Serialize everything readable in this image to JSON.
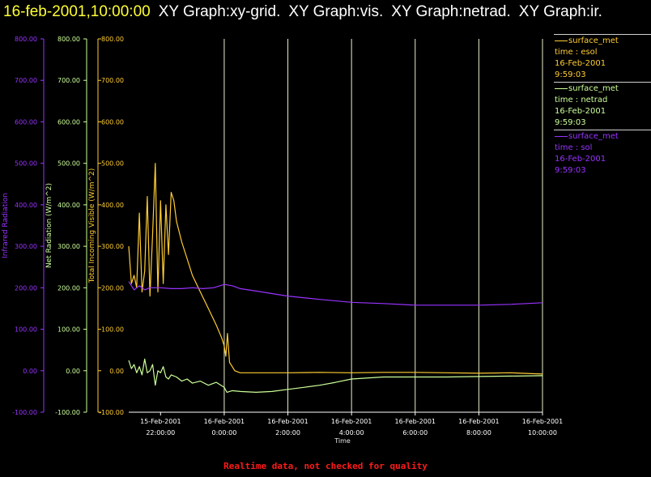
{
  "header": {
    "timestamp": "16-feb-2001,10:00:00",
    "graphs": [
      "XY Graph:xy-grid.",
      "XY Graph:vis.",
      "XY Graph:netrad.",
      "XY Graph:ir."
    ]
  },
  "footer": {
    "text": "Realtime data, not checked for quality"
  },
  "legend": [
    {
      "line1": "surface_met",
      "line2": "time : esol",
      "line3": "16-Feb-2001",
      "line4": "9:59:03",
      "color": "#ffcc33"
    },
    {
      "line1": "surface_met",
      "line2": "time : netrad",
      "line3": "16-Feb-2001",
      "line4": "9:59:03",
      "color": "#ccff99"
    },
    {
      "line1": "surface_met",
      "line2": "time : sol",
      "line3": "16-Feb-2001",
      "line4": "9:59:03",
      "color": "#9933ff"
    }
  ],
  "chart_data": {
    "type": "line",
    "xlabel": "Time",
    "x_ticks": [
      {
        "date": "15-Feb-2001",
        "time": "22:00:00"
      },
      {
        "date": "16-Feb-2001",
        "time": "0:00:00"
      },
      {
        "date": "16-Feb-2001",
        "time": "2:00:00"
      },
      {
        "date": "16-Feb-2001",
        "time": "4:00:00"
      },
      {
        "date": "16-Feb-2001",
        "time": "6:00:00"
      },
      {
        "date": "16-Feb-2001",
        "time": "8:00:00"
      },
      {
        "date": "16-Feb-2001",
        "time": "10:00:00"
      }
    ],
    "xlim": [
      "15-Feb-2001 21:00:00",
      "16-Feb-2001 10:00:00"
    ],
    "grid": "vertical lines at each time tick",
    "axes": [
      {
        "id": "ir",
        "label": "Infrared Radiation",
        "color": "#9933ff",
        "ylim": [
          -100,
          800
        ],
        "ticks": [
          "-100.00",
          "0.00",
          "100.00",
          "200.00",
          "300.00",
          "400.00",
          "500.00",
          "600.00",
          "700.00",
          "800.00"
        ]
      },
      {
        "id": "net",
        "label": "Net Radiation (W/m^2)",
        "color": "#ccff99",
        "ylim": [
          -100,
          800
        ],
        "ticks": [
          "-100.00",
          "0.00",
          "100.00",
          "200.00",
          "300.00",
          "400.00",
          "500.00",
          "600.00",
          "700.00",
          "800.00"
        ]
      },
      {
        "id": "vis",
        "label": "Total Incoming Visible (W/m^2)",
        "color": "#ffcc33",
        "ylim": [
          -100,
          800
        ],
        "ticks": [
          "-100.00",
          "0.00",
          "100.00",
          "200.00",
          "300.00",
          "400.00",
          "500.00",
          "600.00",
          "700.00",
          "800.00"
        ]
      }
    ],
    "series": [
      {
        "name": "time : esol",
        "color": "#ffcc33",
        "x": [
          "15-Feb-2001 21:00:00",
          "15-Feb-2001 21:05:00",
          "15-Feb-2001 21:10:00",
          "15-Feb-2001 21:15:00",
          "15-Feb-2001 21:20:00",
          "15-Feb-2001 21:25:00",
          "15-Feb-2001 21:30:00",
          "15-Feb-2001 21:35:00",
          "15-Feb-2001 21:40:00",
          "15-Feb-2001 21:45:00",
          "15-Feb-2001 21:50:00",
          "15-Feb-2001 21:55:00",
          "15-Feb-2001 22:00:00",
          "15-Feb-2001 22:05:00",
          "15-Feb-2001 22:10:00",
          "15-Feb-2001 22:15:00",
          "15-Feb-2001 22:20:00",
          "15-Feb-2001 22:25:00",
          "15-Feb-2001 22:30:00",
          "15-Feb-2001 22:40:00",
          "15-Feb-2001 22:50:00",
          "15-Feb-2001 23:00:00",
          "15-Feb-2001 23:15:00",
          "15-Feb-2001 23:30:00",
          "15-Feb-2001 23:45:00",
          "15-Feb-2001 23:55:00",
          "16-Feb-2001 00:00:00",
          "16-Feb-2001 00:03:00",
          "16-Feb-2001 00:06:00",
          "16-Feb-2001 00:10:00",
          "16-Feb-2001 00:15:00",
          "16-Feb-2001 00:20:00",
          "16-Feb-2001 00:30:00",
          "16-Feb-2001 00:45:00",
          "16-Feb-2001 01:00:00",
          "16-Feb-2001 02:00:00",
          "16-Feb-2001 03:00:00",
          "16-Feb-2001 04:00:00",
          "16-Feb-2001 05:00:00",
          "16-Feb-2001 06:00:00",
          "16-Feb-2001 07:00:00",
          "16-Feb-2001 08:00:00",
          "16-Feb-2001 09:00:00",
          "16-Feb-2001 10:00:00"
        ],
        "y": [
          300,
          210,
          230,
          200,
          380,
          190,
          240,
          420,
          180,
          330,
          500,
          190,
          410,
          210,
          400,
          280,
          430,
          410,
          360,
          310,
          270,
          230,
          190,
          150,
          110,
          80,
          60,
          35,
          90,
          20,
          10,
          0,
          -5,
          -5,
          -5,
          -5,
          -4,
          -5,
          -4,
          -4,
          -5,
          -6,
          -5,
          -8
        ]
      },
      {
        "name": "time : netrad",
        "color": "#ccff99",
        "x": [
          "15-Feb-2001 21:00:00",
          "15-Feb-2001 21:05:00",
          "15-Feb-2001 21:10:00",
          "15-Feb-2001 21:15:00",
          "15-Feb-2001 21:20:00",
          "15-Feb-2001 21:25:00",
          "15-Feb-2001 21:30:00",
          "15-Feb-2001 21:35:00",
          "15-Feb-2001 21:40:00",
          "15-Feb-2001 21:45:00",
          "15-Feb-2001 21:50:00",
          "15-Feb-2001 21:55:00",
          "15-Feb-2001 22:00:00",
          "15-Feb-2001 22:05:00",
          "15-Feb-2001 22:10:00",
          "15-Feb-2001 22:15:00",
          "15-Feb-2001 22:20:00",
          "15-Feb-2001 22:30:00",
          "15-Feb-2001 22:40:00",
          "15-Feb-2001 22:50:00",
          "15-Feb-2001 23:00:00",
          "15-Feb-2001 23:15:00",
          "15-Feb-2001 23:30:00",
          "15-Feb-2001 23:45:00",
          "16-Feb-2001 00:00:00",
          "16-Feb-2001 00:05:00",
          "16-Feb-2001 00:15:00",
          "16-Feb-2001 00:30:00",
          "16-Feb-2001 01:00:00",
          "16-Feb-2001 01:30:00",
          "16-Feb-2001 02:00:00",
          "16-Feb-2001 02:30:00",
          "16-Feb-2001 03:00:00",
          "16-Feb-2001 03:30:00",
          "16-Feb-2001 04:00:00",
          "16-Feb-2001 05:00:00",
          "16-Feb-2001 06:00:00",
          "16-Feb-2001 07:00:00",
          "16-Feb-2001 08:00:00",
          "16-Feb-2001 09:00:00",
          "16-Feb-2001 10:00:00"
        ],
        "y": [
          25,
          5,
          15,
          -5,
          10,
          -10,
          28,
          -5,
          0,
          15,
          -35,
          0,
          -5,
          10,
          -15,
          -20,
          -10,
          -15,
          -25,
          -20,
          -30,
          -25,
          -35,
          -28,
          -40,
          -52,
          -48,
          -50,
          -52,
          -50,
          -45,
          -40,
          -35,
          -28,
          -20,
          -15,
          -15,
          -15,
          -14,
          -13,
          -12
        ]
      },
      {
        "name": "time : sol",
        "color": "#9933ff",
        "x": [
          "15-Feb-2001 21:00:00",
          "15-Feb-2001 21:10:00",
          "15-Feb-2001 21:20:00",
          "15-Feb-2001 21:30:00",
          "15-Feb-2001 21:40:00",
          "15-Feb-2001 22:00:00",
          "15-Feb-2001 22:20:00",
          "15-Feb-2001 22:40:00",
          "15-Feb-2001 23:00:00",
          "15-Feb-2001 23:20:00",
          "15-Feb-2001 23:40:00",
          "16-Feb-2001 00:00:00",
          "16-Feb-2001 00:15:00",
          "16-Feb-2001 00:30:00",
          "16-Feb-2001 01:00:00",
          "16-Feb-2001 02:00:00",
          "16-Feb-2001 03:00:00",
          "16-Feb-2001 04:00:00",
          "16-Feb-2001 05:00:00",
          "16-Feb-2001 06:00:00",
          "16-Feb-2001 07:00:00",
          "16-Feb-2001 08:00:00",
          "16-Feb-2001 09:00:00",
          "16-Feb-2001 09:30:00",
          "16-Feb-2001 10:00:00"
        ],
        "y": [
          215,
          195,
          205,
          195,
          200,
          200,
          198,
          198,
          200,
          198,
          200,
          208,
          205,
          198,
          192,
          180,
          172,
          165,
          162,
          158,
          158,
          158,
          160,
          162,
          164
        ]
      }
    ]
  }
}
